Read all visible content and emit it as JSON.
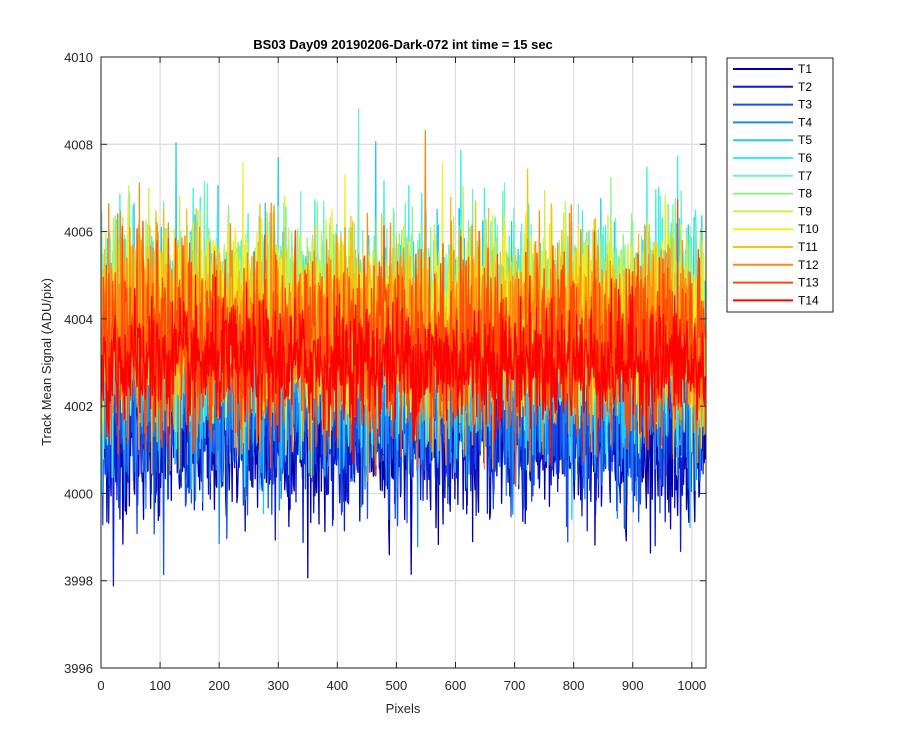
{
  "chart_data": {
    "type": "line",
    "title": "BS03 Day09 20190206-Dark-072 int time = 15 sec",
    "xlabel": "Pixels",
    "ylabel": "Track Mean Signal (ADU/pix)",
    "xlim": [
      0,
      1024
    ],
    "ylim": [
      3996,
      4010
    ],
    "xticks": [
      0,
      100,
      200,
      300,
      400,
      500,
      600,
      700,
      800,
      900,
      1000
    ],
    "yticks": [
      3996,
      3998,
      4000,
      4002,
      4004,
      4006,
      4008,
      4010
    ],
    "grid": true,
    "legend_position": "outside-top-right",
    "n_points": 1024,
    "series": [
      {
        "name": "T1",
        "color": "#0000AA",
        "mean": 4001.2,
        "noise": 0.9
      },
      {
        "name": "T2",
        "color": "#0A1ECF",
        "mean": 4001.5,
        "noise": 0.9
      },
      {
        "name": "T3",
        "color": "#1450E6",
        "mean": 4001.9,
        "noise": 1.0
      },
      {
        "name": "T4",
        "color": "#1C8AF0",
        "mean": 4002.5,
        "noise": 1.1
      },
      {
        "name": "T5",
        "color": "#20C8F8",
        "mean": 4003.4,
        "noise": 1.3
      },
      {
        "name": "T6",
        "color": "#30F0F0",
        "mean": 4003.9,
        "noise": 1.2
      },
      {
        "name": "T7",
        "color": "#70F0C8",
        "mean": 4004.1,
        "noise": 1.1
      },
      {
        "name": "T8",
        "color": "#90F090",
        "mean": 4004.2,
        "noise": 1.0
      },
      {
        "name": "T9",
        "color": "#C8F050",
        "mean": 4004.2,
        "noise": 1.0
      },
      {
        "name": "T10",
        "color": "#F0F020",
        "mean": 4004.0,
        "noise": 1.0
      },
      {
        "name": "T11",
        "color": "#F8C010",
        "mean": 4003.8,
        "noise": 1.1
      },
      {
        "name": "T12",
        "color": "#FF8A10",
        "mean": 4003.6,
        "noise": 1.1
      },
      {
        "name": "T13",
        "color": "#FF4A08",
        "mean": 4003.4,
        "noise": 1.1
      },
      {
        "name": "T14",
        "color": "#FF0000",
        "mean": 4003.0,
        "noise": 0.7
      }
    ]
  }
}
